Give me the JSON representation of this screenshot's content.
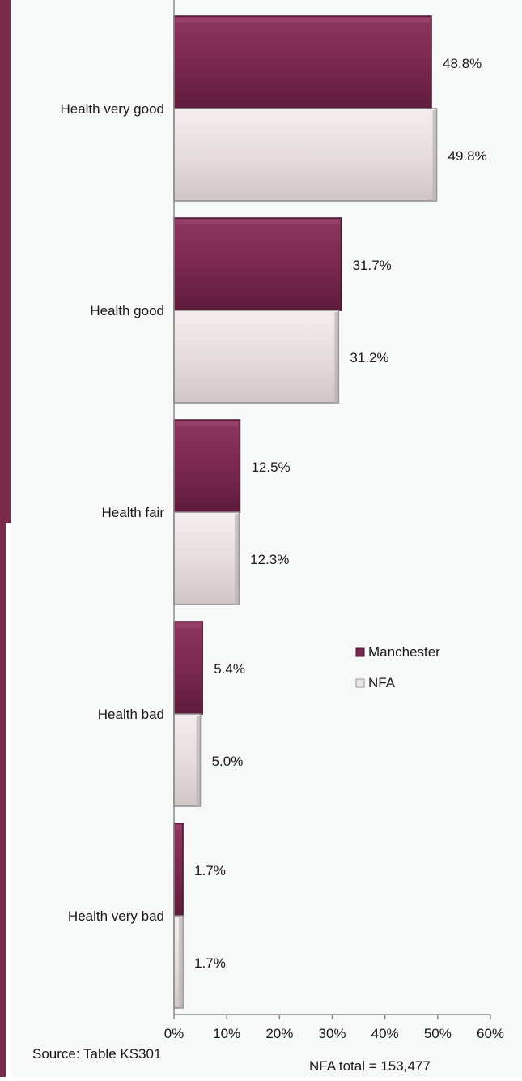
{
  "colors": {
    "manchester": "#7b2850",
    "manchester_light": "#9a3f68",
    "nfa": "#e6dddc",
    "nfa_edge": "#8c8c8c",
    "panel_bg": "#f7f8f8",
    "side_band": "#7b2a4c"
  },
  "chart_data": {
    "type": "bar",
    "orientation": "horizontal",
    "categories": [
      "Health very good",
      "Health good",
      "Health fair",
      "Health bad",
      "Health very bad"
    ],
    "series": [
      {
        "name": "Manchester",
        "values": [
          48.8,
          31.7,
          12.5,
          5.4,
          1.7
        ],
        "labels": [
          "48.8%",
          "31.7%",
          "12.5%",
          "5.4%",
          "1.7%"
        ]
      },
      {
        "name": "NFA",
        "values": [
          49.8,
          31.2,
          12.3,
          5.0,
          1.7
        ],
        "labels": [
          "49.8%",
          "31.2%",
          "12.3%",
          "5.0%",
          "1.7%"
        ]
      }
    ],
    "xlim": [
      0,
      60
    ],
    "xticks": [
      "0%",
      "10%",
      "20%",
      "30%",
      "40%",
      "50%",
      "60%"
    ],
    "legend_position": "right-middle",
    "grid": false
  },
  "footer": {
    "source": "Source: Table KS301",
    "total": "NFA total = 153,477"
  }
}
